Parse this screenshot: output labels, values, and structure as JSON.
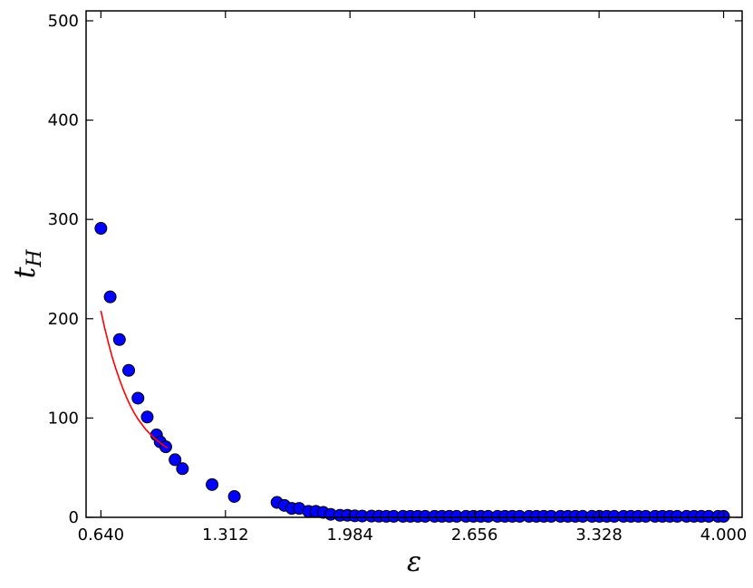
{
  "chart_data": {
    "type": "scatter",
    "title": "",
    "xlabel": "ε",
    "ylabel_main": "t",
    "ylabel_sub": "H",
    "xlim": [
      0.56,
      4.1
    ],
    "ylim": [
      0,
      510
    ],
    "x_ticks": [
      0.64,
      1.312,
      1.984,
      2.656,
      3.328,
      4.0
    ],
    "x_tick_labels": [
      "0.640",
      "1.312",
      "1.984",
      "2.656",
      "3.328",
      "4.000"
    ],
    "y_ticks": [
      0,
      100,
      200,
      300,
      400,
      500
    ],
    "y_tick_labels": [
      "0",
      "100",
      "200",
      "300",
      "400",
      "500"
    ],
    "grid": false,
    "legend": false,
    "colors": {
      "points_fill": "#0000ff",
      "points_edge": "#000000",
      "fit_line": "#ff0000"
    },
    "series": [
      {
        "kind": "scatter",
        "points": [
          [
            0.64,
            291
          ],
          [
            0.69,
            222
          ],
          [
            0.74,
            179
          ],
          [
            0.79,
            148
          ],
          [
            0.84,
            120
          ],
          [
            0.89,
            101
          ],
          [
            0.94,
            83
          ],
          [
            0.96,
            76
          ],
          [
            0.99,
            71
          ],
          [
            1.04,
            58
          ],
          [
            1.08,
            49
          ],
          [
            1.24,
            33
          ],
          [
            1.36,
            21
          ],
          [
            1.59,
            15
          ],
          [
            1.63,
            12
          ],
          [
            1.67,
            9
          ],
          [
            1.71,
            9
          ],
          [
            1.76,
            6
          ],
          [
            1.8,
            6
          ],
          [
            1.84,
            5
          ],
          [
            1.88,
            3
          ],
          [
            1.93,
            2
          ],
          [
            1.97,
            2
          ],
          [
            2.01,
            1.5
          ],
          [
            2.05,
            1.3
          ],
          [
            2.1,
            1.2
          ],
          [
            2.14,
            1.1
          ],
          [
            2.18,
            1
          ],
          [
            2.22,
            1
          ],
          [
            2.27,
            1
          ],
          [
            2.31,
            1
          ],
          [
            2.35,
            1
          ],
          [
            2.39,
            1
          ],
          [
            2.44,
            1
          ],
          [
            2.48,
            1
          ],
          [
            2.52,
            1
          ],
          [
            2.56,
            1
          ],
          [
            2.61,
            1
          ],
          [
            2.65,
            1
          ],
          [
            2.69,
            1
          ],
          [
            2.73,
            1
          ],
          [
            2.78,
            1
          ],
          [
            2.82,
            1
          ],
          [
            2.86,
            1
          ],
          [
            2.9,
            1
          ],
          [
            2.95,
            1
          ],
          [
            2.99,
            1
          ],
          [
            3.03,
            1
          ],
          [
            3.07,
            1
          ],
          [
            3.12,
            1
          ],
          [
            3.16,
            1
          ],
          [
            3.2,
            1
          ],
          [
            3.24,
            1
          ],
          [
            3.29,
            1
          ],
          [
            3.33,
            1
          ],
          [
            3.37,
            1
          ],
          [
            3.41,
            1
          ],
          [
            3.46,
            1
          ],
          [
            3.5,
            1
          ],
          [
            3.54,
            1
          ],
          [
            3.58,
            1
          ],
          [
            3.63,
            1
          ],
          [
            3.67,
            1
          ],
          [
            3.71,
            1
          ],
          [
            3.75,
            1
          ],
          [
            3.8,
            1
          ],
          [
            3.84,
            1
          ],
          [
            3.88,
            1
          ],
          [
            3.92,
            1
          ],
          [
            3.97,
            1
          ],
          [
            4.0,
            1
          ]
        ]
      },
      {
        "kind": "line",
        "x": [
          0.64,
          0.66,
          0.68,
          0.7,
          0.72,
          0.74,
          0.76,
          0.78,
          0.8,
          0.82,
          0.84,
          0.86,
          0.88,
          0.9,
          0.92,
          0.94,
          0.96,
          0.98,
          1.0
        ],
        "y": [
          208,
          191,
          176,
          162,
          150,
          139,
          129,
          120,
          112,
          105,
          99,
          94,
          89,
          85,
          81,
          78,
          75,
          72,
          70
        ]
      }
    ]
  }
}
